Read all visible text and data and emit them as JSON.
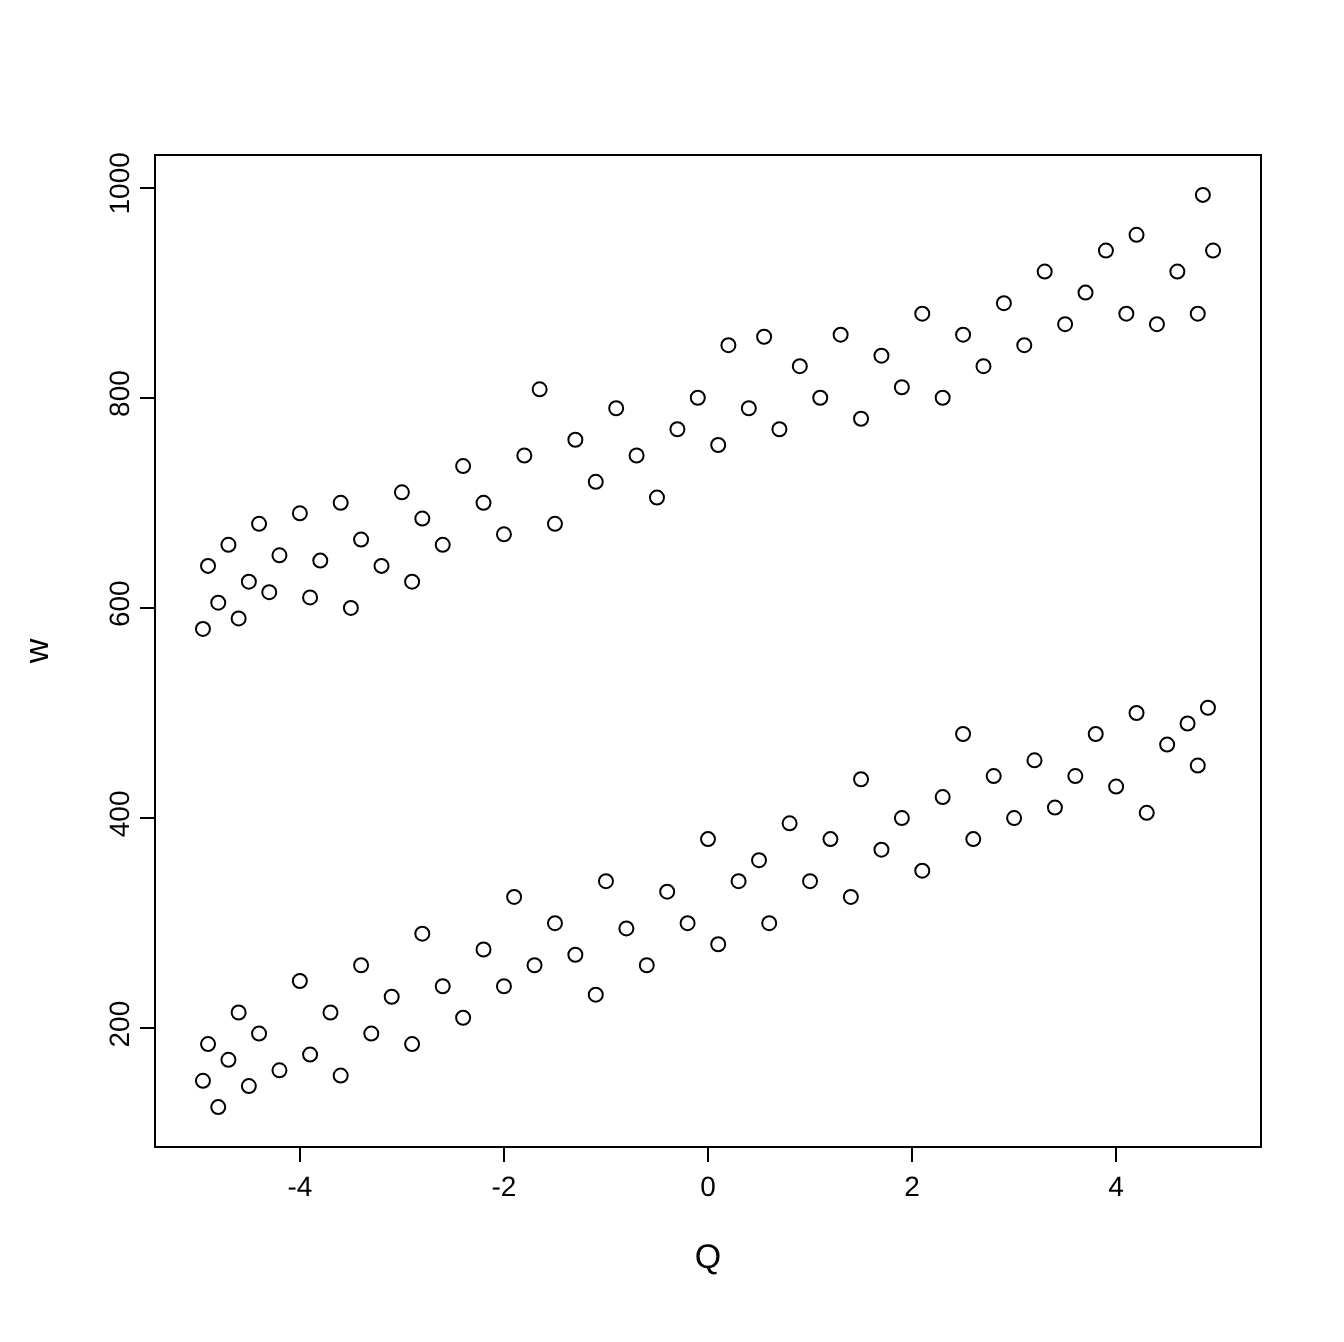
{
  "chart_data": {
    "type": "scatter",
    "xlabel": "Q",
    "ylabel": "w",
    "marker": "circle",
    "grid": false,
    "xlim": [
      -5.41,
      5.41
    ],
    "ylim": [
      88,
      1030
    ],
    "xticks": [
      -4,
      -2,
      0,
      2,
      4
    ],
    "yticks": [
      200,
      400,
      600,
      800,
      1000
    ],
    "series": [
      {
        "color": "#000000",
        "x": [
          -4.95,
          -4.9,
          -4.8,
          -4.7,
          -4.6,
          -4.5,
          -4.4,
          -4.3,
          -4.2,
          -4.0,
          -3.9,
          -3.8,
          -3.6,
          -3.5,
          -3.4,
          -3.2,
          -3.0,
          -2.9,
          -2.8,
          -2.6,
          -2.4,
          -2.2,
          -2.0,
          -1.8,
          -1.65,
          -1.5,
          -1.3,
          -1.1,
          -0.9,
          -0.7,
          -0.5,
          -0.3,
          -0.1,
          0.1,
          0.2,
          0.4,
          0.55,
          0.7,
          0.9,
          1.1,
          1.3,
          1.5,
          1.7,
          1.9,
          2.1,
          2.3,
          2.5,
          2.7,
          2.9,
          3.1,
          3.3,
          3.5,
          3.7,
          3.9,
          4.1,
          4.2,
          4.4,
          4.6,
          4.8,
          4.85,
          4.95
        ],
        "values": [
          580,
          640,
          605,
          660,
          590,
          625,
          680,
          615,
          650,
          690,
          610,
          645,
          700,
          600,
          665,
          640,
          710,
          625,
          685,
          660,
          735,
          700,
          670,
          745,
          808,
          680,
          760,
          720,
          790,
          745,
          705,
          770,
          800,
          755,
          850,
          790,
          858,
          770,
          830,
          800,
          860,
          780,
          840,
          810,
          880,
          800,
          860,
          830,
          890,
          850,
          920,
          870,
          900,
          940,
          880,
          955,
          870,
          920,
          880,
          993,
          940
        ]
      },
      {
        "color": "#000000",
        "x": [
          -4.95,
          -4.9,
          -4.8,
          -4.7,
          -4.6,
          -4.5,
          -4.4,
          -4.2,
          -4.0,
          -3.9,
          -3.7,
          -3.6,
          -3.4,
          -3.3,
          -3.1,
          -2.9,
          -2.8,
          -2.6,
          -2.4,
          -2.2,
          -2.0,
          -1.9,
          -1.7,
          -1.5,
          -1.3,
          -1.1,
          -1.0,
          -0.8,
          -0.6,
          -0.4,
          -0.2,
          0.0,
          0.1,
          0.3,
          0.5,
          0.6,
          0.8,
          1.0,
          1.2,
          1.4,
          1.5,
          1.7,
          1.9,
          2.1,
          2.3,
          2.5,
          2.6,
          2.8,
          3.0,
          3.2,
          3.4,
          3.6,
          3.8,
          4.0,
          4.2,
          4.3,
          4.5,
          4.7,
          4.8,
          4.9
        ],
        "values": [
          150,
          185,
          125,
          170,
          215,
          145,
          195,
          160,
          245,
          175,
          215,
          155,
          260,
          195,
          230,
          185,
          290,
          240,
          210,
          275,
          240,
          325,
          260,
          300,
          270,
          232,
          340,
          295,
          260,
          330,
          300,
          380,
          280,
          340,
          360,
          300,
          395,
          340,
          380,
          325,
          437,
          370,
          400,
          350,
          420,
          480,
          380,
          440,
          400,
          455,
          410,
          440,
          480,
          430,
          500,
          405,
          470,
          490,
          450,
          505
        ]
      }
    ]
  }
}
